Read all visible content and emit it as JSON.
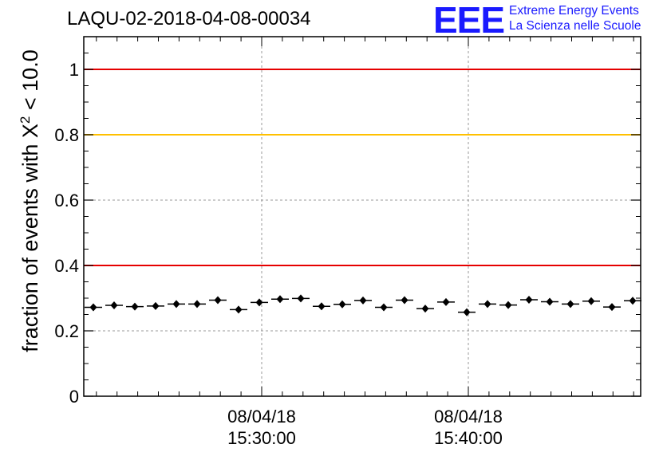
{
  "title": "LAQU-02-2018-04-08-00034",
  "logo": {
    "mark": "EEE",
    "line1": "Extreme Energy Events",
    "line2": "La Scienza nelle Scuole",
    "color": "#1a1aff"
  },
  "chart_data": {
    "type": "scatter",
    "ylabel_parts": {
      "before": "fraction of events with X",
      "sup": "2",
      "after": " < 10.0"
    },
    "ylim": [
      0,
      1.1
    ],
    "yticks": [
      0,
      0.2,
      0.4,
      0.6,
      0.8,
      1
    ],
    "ytick_labels": [
      "0",
      "0.2",
      "0.4",
      "0.6",
      "0.8",
      "1"
    ],
    "xticks_labels": [
      {
        "line1": "08/04/18",
        "line2": "15:30:00"
      },
      {
        "line1": "08/04/18",
        "line2": "15:40:00"
      }
    ],
    "grid": true,
    "reference_lines": [
      {
        "y": 1.0,
        "color": "#e60000"
      },
      {
        "y": 0.8,
        "color": "#ffc000"
      },
      {
        "y": 0.4,
        "color": "#e60000"
      }
    ],
    "points": [
      0.272,
      0.278,
      0.274,
      0.276,
      0.282,
      0.282,
      0.294,
      0.265,
      0.287,
      0.297,
      0.299,
      0.275,
      0.281,
      0.293,
      0.272,
      0.294,
      0.268,
      0.288,
      0.257,
      0.282,
      0.279,
      0.295,
      0.289,
      0.282,
      0.291,
      0.273,
      0.292
    ]
  }
}
